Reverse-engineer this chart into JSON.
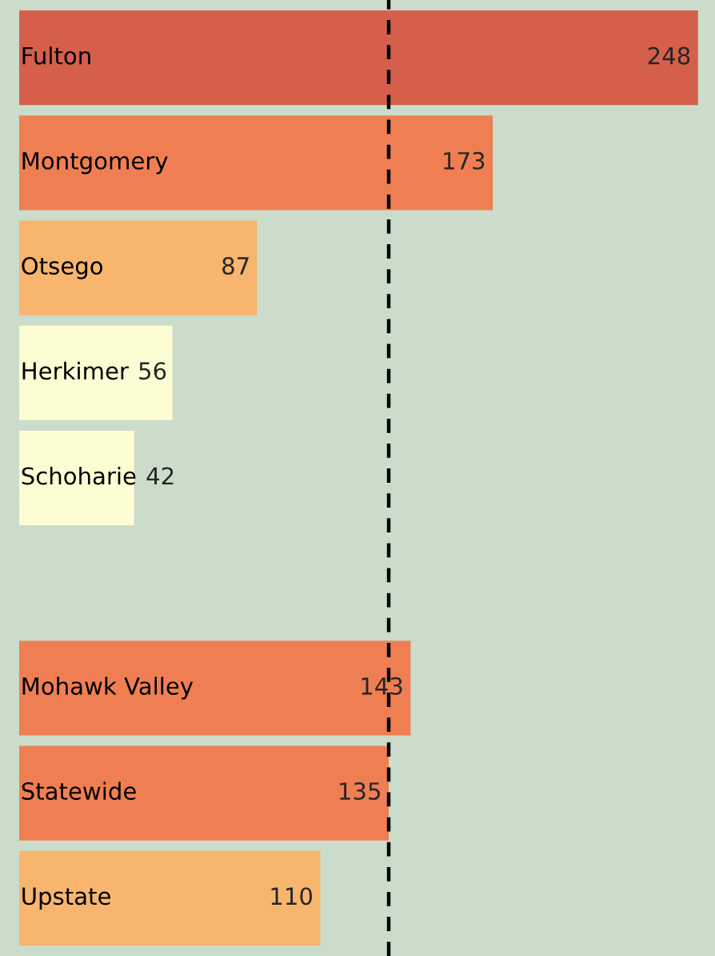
{
  "chart_data": {
    "type": "bar",
    "orientation": "horizontal",
    "categories": [
      "Fulton",
      "Montgomery",
      "Otsego",
      "Herkimer",
      "Schoharie",
      null,
      "Mohawk Valley",
      "Statewide",
      "Upstate"
    ],
    "values": [
      248,
      173,
      87,
      56,
      42,
      null,
      143,
      135,
      110
    ],
    "colors": [
      "#d65f4c",
      "#ef7f52",
      "#f7b56e",
      "#fdfdd3",
      "#fdfdd3",
      "#ffffff",
      "#ef7f52",
      "#ef7f52",
      "#f7b56e"
    ],
    "data_labels": true,
    "ref_lines": [
      {
        "axis": "x",
        "value": 135,
        "color": "#000000",
        "line_style": "dashed"
      }
    ],
    "legend": false,
    "tick_labels": false
  }
}
